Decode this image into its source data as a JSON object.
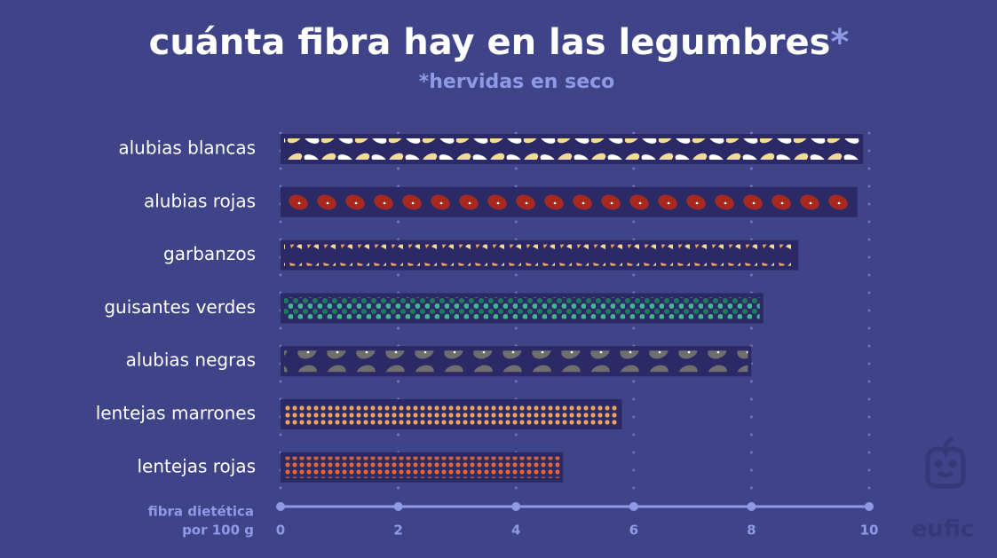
{
  "chart_data": {
    "type": "bar",
    "orientation": "horizontal",
    "title": "cuánta fibra hay en las legumbres",
    "title_mark": "*",
    "subtitle": "*hervidas en seco",
    "x_label": [
      "fibra dietética",
      "por 100 g"
    ],
    "categories": [
      "alubias blancas",
      "alubias rojas",
      "garbanzos",
      "guisantes verdes",
      "alubias negras",
      "lentejas marrones",
      "lentejas rojas"
    ],
    "values": [
      9.9,
      9.8,
      8.8,
      8.2,
      8.0,
      5.8,
      4.8
    ],
    "color": "#2c2a66",
    "xlim": [
      0,
      10
    ],
    "xticks": [
      0,
      2,
      4,
      6,
      8,
      10
    ],
    "grid": true,
    "logo": "eufic"
  }
}
